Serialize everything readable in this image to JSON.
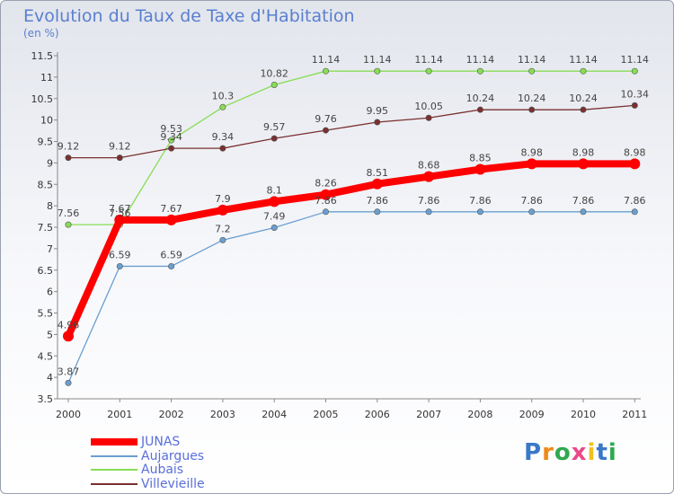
{
  "title": "Evolution du Taux de Taxe d'Habitation",
  "subtitle": "(en %)",
  "logo": {
    "text": "Proxiti"
  },
  "chart_data": {
    "type": "line",
    "title": "Evolution du Taux de Taxe d'Habitation",
    "ylabel": "(en %)",
    "x": [
      "2000",
      "2001",
      "2002",
      "2003",
      "2004",
      "2005",
      "2006",
      "2007",
      "2008",
      "2009",
      "2010",
      "2011"
    ],
    "ylim": [
      3.5,
      11.5
    ],
    "yticks": [
      "3.5",
      "4",
      "4.5",
      "5",
      "5.5",
      "6",
      "6.5",
      "7",
      "7.5",
      "8",
      "8.5",
      "9",
      "9.5",
      "10",
      "10.5",
      "11",
      "11.5"
    ],
    "grid": false,
    "legend_position": "bottom-left",
    "series": [
      {
        "name": "JUNAS",
        "color": "#ff0000",
        "values": [
          4.96,
          7.67,
          7.67,
          7.9,
          8.1,
          8.26,
          8.51,
          8.68,
          8.85,
          8.98,
          8.98,
          8.98
        ],
        "labels": [
          "4.96",
          "7.67",
          "7.67",
          "7.9",
          "8.1",
          "8.26",
          "8.51",
          "8.68",
          "8.85",
          "8.98",
          "8.98",
          "8.98"
        ]
      },
      {
        "name": "Aujargues",
        "color": "#6a9fd0",
        "values": [
          3.87,
          6.59,
          6.59,
          7.2,
          7.49,
          7.86,
          7.86,
          7.86,
          7.86,
          7.86,
          7.86,
          7.86
        ],
        "labels": [
          "3.87",
          "6.59",
          "6.59",
          "7.2",
          "7.49",
          "7.86",
          "7.86",
          "7.86",
          "7.86",
          "7.86",
          "7.86",
          "7.86"
        ]
      },
      {
        "name": "Aubais",
        "color": "#88dd55",
        "values": [
          7.56,
          7.56,
          9.53,
          10.3,
          10.82,
          11.14,
          11.14,
          11.14,
          11.14,
          11.14,
          11.14,
          11.14
        ],
        "labels": [
          "7.56",
          "7.56",
          "9.53",
          "10.3",
          "10.82",
          "11.14",
          "11.14",
          "11.14",
          "11.14",
          "11.14",
          "11.14",
          "11.14"
        ]
      },
      {
        "name": "Villevieille",
        "color": "#7a3030",
        "values": [
          9.12,
          9.12,
          9.34,
          9.34,
          9.57,
          9.76,
          9.95,
          10.05,
          10.24,
          10.24,
          10.24,
          10.34
        ],
        "labels": [
          "9.12",
          "9.12",
          "9.34",
          "9.34",
          "9.57",
          "9.76",
          "9.95",
          "10.05",
          "10.24",
          "10.24",
          "10.24",
          "10.34"
        ]
      }
    ]
  }
}
